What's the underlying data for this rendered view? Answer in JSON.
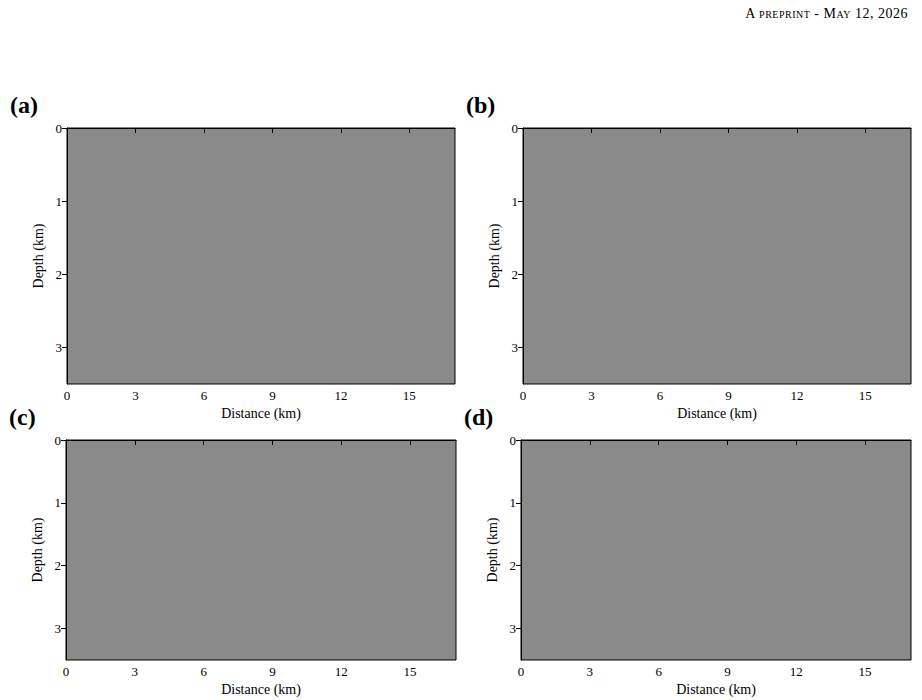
{
  "header": "A preprint - May 12, 2026",
  "chart_data": [
    {
      "type": "image",
      "title": "(a)",
      "xlabel": "Distance (km)",
      "ylabel": "Depth (km)",
      "xlim": [
        0,
        17
      ],
      "xticks": [
        0,
        3,
        6,
        9,
        12,
        15
      ],
      "ylim": [
        0,
        3.5
      ],
      "yticks": [
        0,
        1,
        2,
        3
      ],
      "grid": false
    },
    {
      "type": "image",
      "title": "(b)",
      "xlabel": "Distance (km)",
      "ylabel": "Depth (km)",
      "xlim": [
        0,
        17
      ],
      "xticks": [
        0,
        3,
        6,
        9,
        12,
        15
      ],
      "ylim": [
        0,
        3.5
      ],
      "yticks": [
        0,
        1,
        2,
        3
      ],
      "grid": false
    },
    {
      "type": "image",
      "title": "(c)",
      "xlabel": "Distance (km)",
      "ylabel": "Depth (km)",
      "xlim": [
        0,
        17
      ],
      "xticks": [
        0,
        3,
        6,
        9,
        12,
        15
      ],
      "ylim": [
        0,
        3.5
      ],
      "yticks": [
        0,
        1,
        2,
        3
      ],
      "grid": false
    },
    {
      "type": "image",
      "title": "(d)",
      "xlabel": "Distance (km)",
      "ylabel": "Depth (km)",
      "xlim": [
        0,
        17
      ],
      "xticks": [
        0,
        3,
        6,
        9,
        12,
        15
      ],
      "ylim": [
        0,
        3.5
      ],
      "yticks": [
        0,
        1,
        2,
        3
      ],
      "grid": false
    }
  ]
}
